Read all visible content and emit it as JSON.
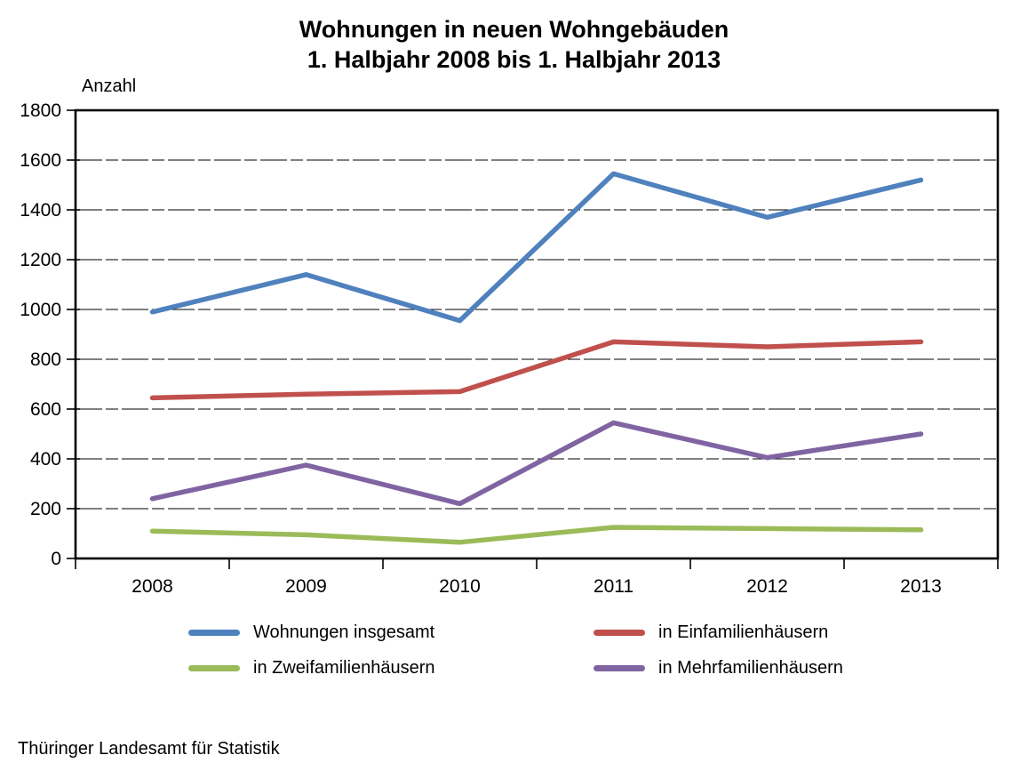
{
  "title": {
    "line1": "Wohnungen in neuen Wohngebäuden",
    "line2": "1. Halbjahr 2008 bis 1. Halbjahr 2013"
  },
  "footer": {
    "source": "Thüringer Landesamt für Statistik"
  },
  "legend": {
    "items": [
      {
        "label": "Wohnungen insgesamt"
      },
      {
        "label": "in Einfamilienhäusern"
      },
      {
        "label": "in Zweifamilienhäusern"
      },
      {
        "label": "in Mehrfamilienhäusern"
      }
    ]
  },
  "chart_data": {
    "type": "line",
    "title": "Wohnungen in neuen Wohngebäuden 1. Halbjahr 2008 bis 1. Halbjahr 2013",
    "xlabel": "",
    "ylabel": "Anzahl",
    "ylim": [
      0,
      1800
    ],
    "ytick_step": 200,
    "grid": true,
    "legend_position": "bottom",
    "categories": [
      "2008",
      "2009",
      "2010",
      "2011",
      "2012",
      "2013"
    ],
    "series": [
      {
        "name": "Wohnungen insgesamt",
        "color": "#4F81BD",
        "values": [
          990,
          1140,
          955,
          1545,
          1370,
          1520
        ]
      },
      {
        "name": "in Einfamilienhäusern",
        "color": "#C0504D",
        "values": [
          645,
          660,
          670,
          870,
          850,
          870
        ]
      },
      {
        "name": "in Zweifamilienhäusern",
        "color": "#9BBB59",
        "values": [
          110,
          95,
          65,
          125,
          120,
          115
        ]
      },
      {
        "name": "in Mehrfamilienhäusern",
        "color": "#8064A2",
        "values": [
          240,
          375,
          220,
          545,
          405,
          500
        ]
      }
    ]
  }
}
